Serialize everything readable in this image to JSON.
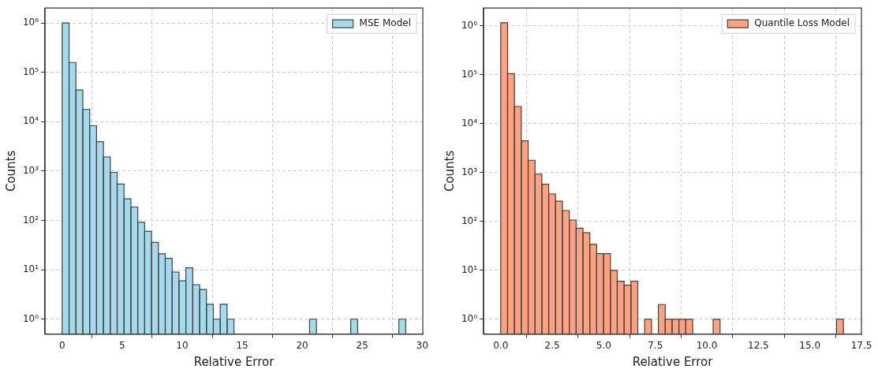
{
  "chart_data": [
    {
      "type": "histogram",
      "xlabel": "Relative Error",
      "ylabel": "Counts",
      "log": true,
      "grid": true,
      "legend": "top right",
      "bins": [
        0,
        0.5725,
        1.145,
        1.7175,
        2.29,
        2.8625,
        3.435,
        4.0075,
        4.58,
        5.1525,
        5.725,
        6.2975,
        6.87,
        7.4425,
        8.015,
        8.5875,
        9.16,
        9.7325,
        10.305,
        10.8775,
        11.45,
        12.0225,
        12.595,
        13.1675,
        13.74,
        14.3125,
        14.885,
        15.4575,
        16.03,
        16.6025,
        17.175,
        17.7475,
        18.32,
        18.8925,
        19.465,
        20.0375,
        20.61,
        21.1825,
        21.755,
        22.3275,
        22.9,
        23.4725,
        24.045,
        24.6175,
        25.19,
        25.7625,
        26.335,
        26.9075,
        27.48,
        28.0525,
        28.625
      ],
      "series": [
        {
          "name": "MSE Model",
          "color": "#a5d9ec",
          "values": [
            1000000,
            158000,
            43700,
            17700,
            8250,
            3940,
            1930,
            943,
            545,
            273,
            187,
            92,
            60,
            36,
            21,
            17,
            9,
            6,
            11,
            5,
            4,
            2,
            1,
            2,
            1,
            null,
            null,
            null,
            null,
            null,
            null,
            null,
            null,
            null,
            null,
            null,
            1,
            null,
            null,
            null,
            null,
            null,
            1,
            null,
            null,
            null,
            null,
            null,
            null,
            1
          ]
        }
      ],
      "xlim": [
        -1.43,
        30.05
      ],
      "xticks": [
        0,
        5,
        10,
        15,
        20,
        25,
        30
      ],
      "ylim": [
        0.5,
        2000000
      ],
      "yticks": [
        {
          "value": 1,
          "label": "10⁰"
        },
        {
          "value": 10,
          "label": "10¹"
        },
        {
          "value": 100,
          "label": "10²"
        },
        {
          "value": 1000,
          "label": "10³"
        },
        {
          "value": 10000,
          "label": "10⁴"
        },
        {
          "value": 100000,
          "label": "10⁵"
        },
        {
          "value": 1000000,
          "label": "10⁶"
        }
      ]
    },
    {
      "type": "histogram",
      "xlabel": "Relative Error",
      "ylabel": "Counts",
      "log": true,
      "grid": true,
      "legend": "top right",
      "bins": [
        0,
        0.3325,
        0.665,
        0.9975,
        1.33,
        1.6625,
        1.995,
        2.3275,
        2.66,
        2.9925,
        3.325,
        3.6575,
        3.99,
        4.3225,
        4.655,
        4.9875,
        5.32,
        5.6525,
        5.985,
        6.3175,
        6.65,
        6.9825,
        7.315,
        7.6475,
        7.98,
        8.3125,
        8.645,
        8.9775,
        9.31,
        9.6425,
        9.975,
        10.3075,
        10.64,
        10.9725,
        11.305,
        11.6375,
        11.97,
        12.3025,
        12.635,
        12.9675,
        13.3,
        13.6325,
        13.965,
        14.2975,
        14.63,
        14.9625,
        15.295,
        15.6275,
        15.96,
        16.2925,
        16.625
      ],
      "series": [
        {
          "name": "Quantile Loss Model",
          "color": "#fca282",
          "values": [
            1150000,
            105000,
            22400,
            4430,
            1780,
            930,
            575,
            364,
            260,
            167,
            107,
            73,
            59,
            34,
            22,
            22,
            10,
            6,
            5,
            6,
            null,
            1,
            null,
            2,
            1,
            1,
            1,
            1,
            null,
            null,
            null,
            1,
            null,
            null,
            null,
            null,
            null,
            null,
            null,
            null,
            null,
            null,
            null,
            null,
            null,
            null,
            null,
            null,
            null,
            1
          ]
        }
      ],
      "xlim": [
        -0.83,
        17.5
      ],
      "xticks": [
        {
          "value": 0,
          "label": "0.0"
        },
        {
          "value": 2.5,
          "label": "2.5"
        },
        {
          "value": 5,
          "label": "5.0"
        },
        {
          "value": 7.5,
          "label": "7.5"
        },
        {
          "value": 10,
          "label": "10.0"
        },
        {
          "value": 12.5,
          "label": "12.5"
        },
        {
          "value": 15,
          "label": "15.0"
        },
        {
          "value": 17.5,
          "label": "17.5"
        }
      ],
      "ylim": [
        0.5,
        2300000
      ],
      "yticks": [
        {
          "value": 1,
          "label": "10⁰"
        },
        {
          "value": 10,
          "label": "10¹"
        },
        {
          "value": 100,
          "label": "10²"
        },
        {
          "value": 1000,
          "label": "10³"
        },
        {
          "value": 10000,
          "label": "10⁴"
        },
        {
          "value": 100000,
          "label": "10⁵"
        },
        {
          "value": 1000000,
          "label": "10⁶"
        }
      ]
    }
  ]
}
